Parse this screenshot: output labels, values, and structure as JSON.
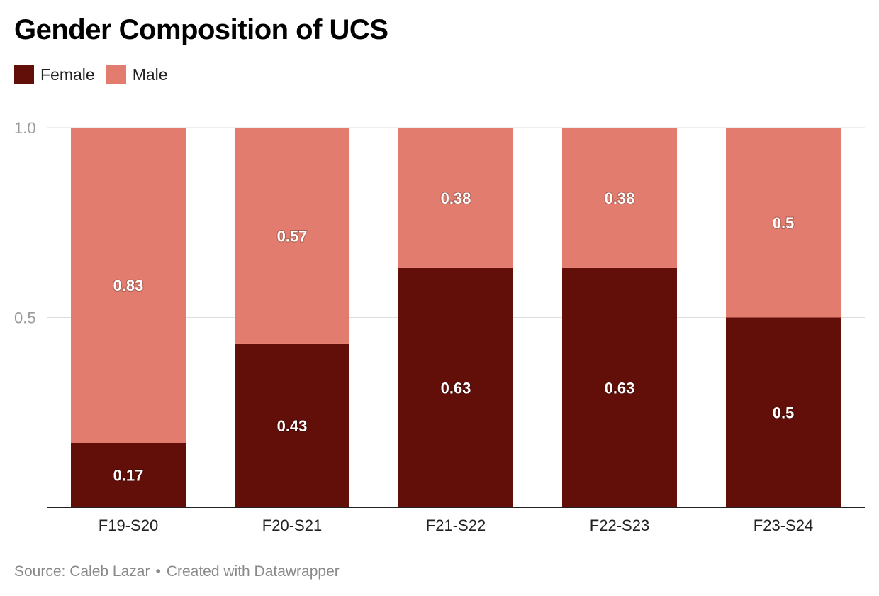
{
  "title": "Gender Composition of UCS",
  "legend": [
    {
      "label": "Female",
      "color": "#620f0a"
    },
    {
      "label": "Male",
      "color": "#e27c6e"
    }
  ],
  "footer": {
    "source": "Source: Caleb Lazar",
    "separator": "•",
    "credit": "Created with Datawrapper"
  },
  "chart_data": {
    "type": "bar",
    "stacked": true,
    "title": "Gender Composition of UCS",
    "categories": [
      "F19-S20",
      "F20-S21",
      "F21-S22",
      "F22-S23",
      "F23-S24"
    ],
    "series": [
      {
        "name": "Female",
        "color": "#620f0a",
        "values": [
          0.17,
          0.43,
          0.63,
          0.63,
          0.5
        ]
      },
      {
        "name": "Male",
        "color": "#e27c6e",
        "values": [
          0.83,
          0.57,
          0.38,
          0.38,
          0.5
        ]
      }
    ],
    "yticks": [
      {
        "value": 0.5,
        "label": "0.5"
      },
      {
        "value": 1.0,
        "label": "1.0"
      }
    ],
    "ylim": [
      0,
      1
    ],
    "grid": true,
    "legend_position": "top-left",
    "xlabel": "",
    "ylabel": ""
  }
}
